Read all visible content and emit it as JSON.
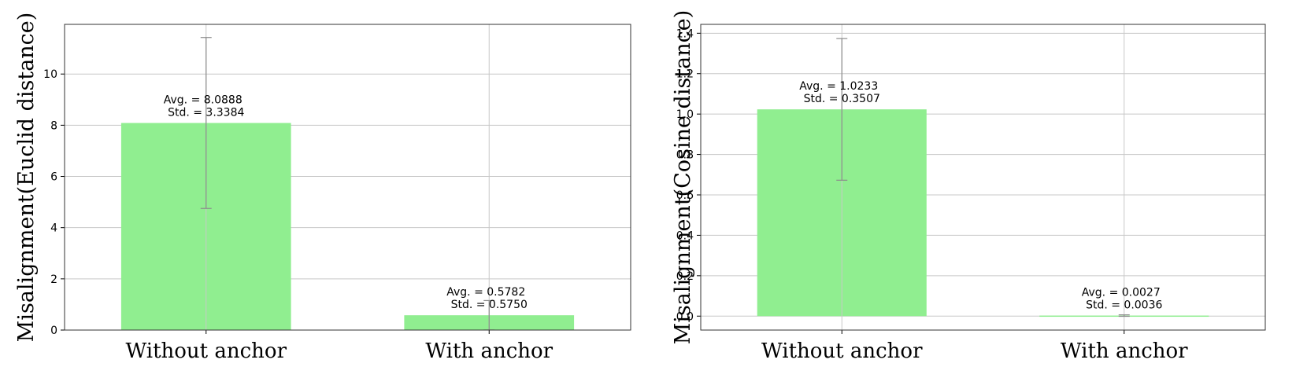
{
  "chart_data": [
    {
      "type": "bar",
      "categories": [
        "Without anchor",
        "With anchor"
      ],
      "values": [
        8.0888,
        0.5782
      ],
      "errors": [
        3.3384,
        0.575
      ],
      "annotations": [
        [
          "Avg. = 8.0888",
          "Std. = 3.3384"
        ],
        [
          "Avg. = 0.5782",
          "Std. = 0.5750"
        ]
      ],
      "ylabel": "Misalignment(Euclid distance)",
      "ylim": [
        0,
        11.94
      ],
      "yticks": [
        0,
        2,
        4,
        6,
        8,
        10
      ],
      "grid": true,
      "bar_color": "#90EE90"
    },
    {
      "type": "bar",
      "categories": [
        "Without anchor",
        "With anchor"
      ],
      "values": [
        1.0233,
        0.0027
      ],
      "errors": [
        0.3507,
        0.0036
      ],
      "annotations": [
        [
          "Avg. = 1.0233",
          "Std. = 0.3507"
        ],
        [
          "Avg. = 0.0027",
          "Std. = 0.0036"
        ]
      ],
      "ylabel": "Misalignment(Cosine distance)",
      "ylim": [
        -0.069,
        1.444
      ],
      "yticks": [
        0.0,
        0.2,
        0.4,
        0.6,
        0.8,
        1.0,
        1.2,
        1.4
      ],
      "ytick_labels": [
        "0.0",
        "0.2",
        "0.4",
        "0.6",
        "0.8",
        "1.0",
        "1.2",
        "1.4"
      ],
      "grid": true,
      "bar_color": "#90EE90"
    }
  ]
}
